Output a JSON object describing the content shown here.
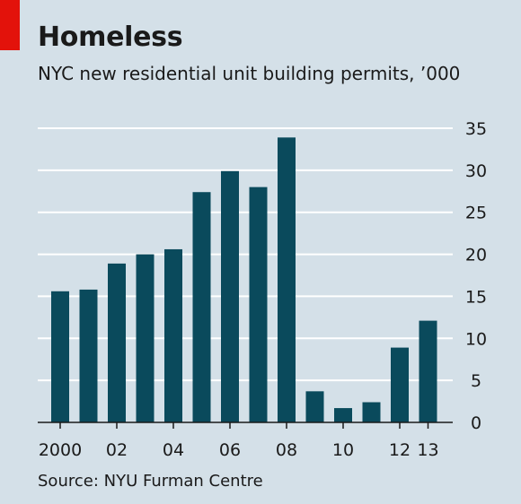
{
  "header": {
    "title": "Homeless",
    "subtitle": "NYC new residential unit building permits, ’000"
  },
  "footer": {
    "source": "Source: NYU Furman Centre"
  },
  "colors": {
    "background": "#d4e0e8",
    "bar": "#0a4a5c",
    "grid": "#ffffff",
    "accent": "#e3120b",
    "axis": "#1a1a1a"
  },
  "chart_data": {
    "type": "bar",
    "title": "Homeless",
    "subtitle": "NYC new residential unit building permits, ’000",
    "xlabel": "",
    "ylabel": "",
    "categories": [
      "2000",
      "2001",
      "2002",
      "2003",
      "2004",
      "2005",
      "2006",
      "2007",
      "2008",
      "2009",
      "2010",
      "2011",
      "2012",
      "2013"
    ],
    "values": [
      15.6,
      15.8,
      18.9,
      20.0,
      20.6,
      27.4,
      29.9,
      28.0,
      33.9,
      3.7,
      1.7,
      2.4,
      8.9,
      12.1
    ],
    "x_tick_labels": [
      "2000",
      "",
      "02",
      "",
      "04",
      "",
      "06",
      "",
      "08",
      "",
      "10",
      "",
      "12",
      "13"
    ],
    "ylim": [
      0,
      35
    ],
    "yticks": [
      0,
      5,
      10,
      15,
      20,
      25,
      30,
      35
    ],
    "y_axis_position": "right",
    "grid": true
  }
}
